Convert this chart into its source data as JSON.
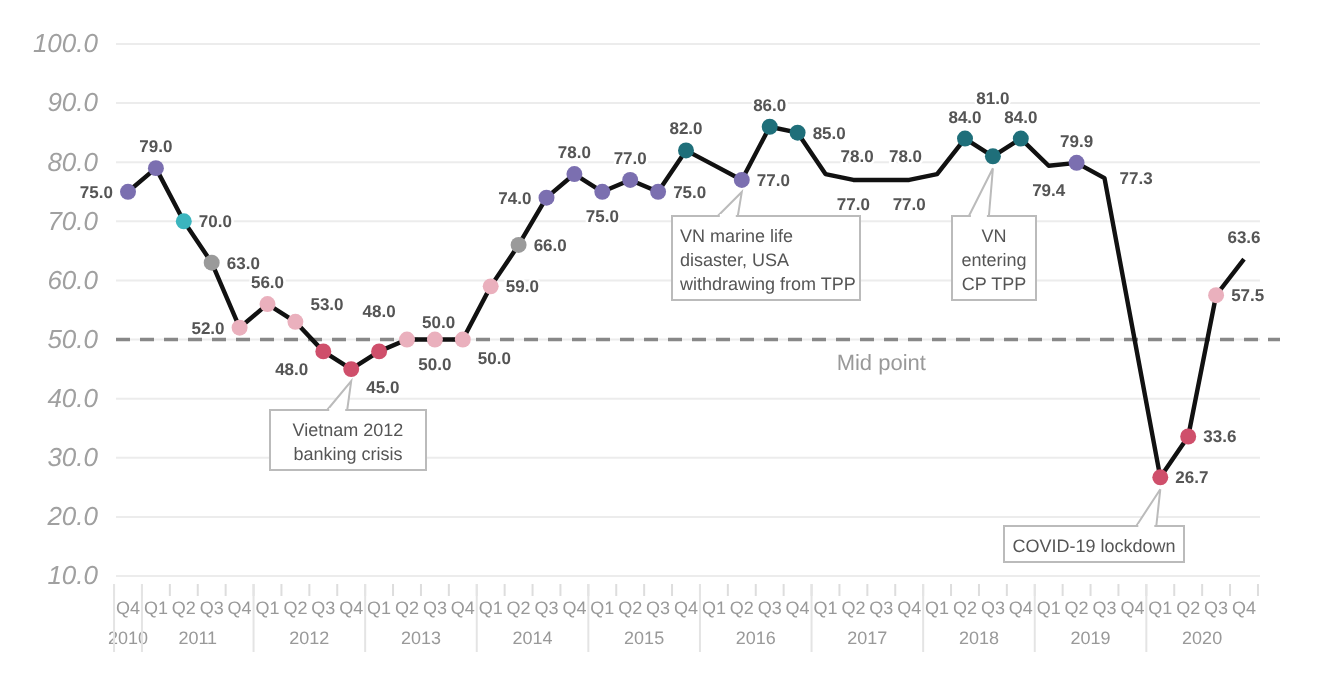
{
  "chart_data": {
    "type": "line",
    "categories": [
      "Q4",
      "Q1",
      "Q2",
      "Q3",
      "Q4",
      "Q1",
      "Q2",
      "Q3",
      "Q4",
      "Q1",
      "Q2",
      "Q3",
      "Q4",
      "Q1",
      "Q2",
      "Q3",
      "Q4",
      "Q1",
      "Q2",
      "Q3",
      "Q4",
      "Q1",
      "Q2",
      "Q3",
      "Q4",
      "Q1",
      "Q2",
      "Q3",
      "Q4",
      "Q1",
      "Q2",
      "Q3",
      "Q4",
      "Q1",
      "Q2",
      "Q3",
      "Q4",
      "Q1",
      "Q2",
      "Q3",
      "Q4"
    ],
    "series": [
      {
        "color": "#111111",
        "values": [
          75.0,
          79.0,
          70.0,
          63.0,
          52.0,
          56.0,
          53.0,
          48.0,
          45.0,
          48.0,
          50.0,
          50.0,
          50.0,
          59.0,
          66.0,
          74.0,
          78.0,
          75.0,
          77.0,
          75.0,
          82.0,
          79.5,
          77.0,
          86.0,
          85.0,
          78.0,
          77.0,
          77.0,
          77.0,
          78.0,
          84.0,
          81.0,
          84.0,
          79.4,
          79.9,
          77.3,
          52.0,
          26.7,
          33.6,
          57.5,
          63.6
        ],
        "colors": [
          "#7b6fb0",
          "#7b6fb0",
          "#3bb5be",
          "#9a9a9a",
          "#eab0bd",
          "#eab0bd",
          "#eab0bd",
          "#cf4f6b",
          "#cf4f6b",
          "#cf4f6b",
          "#eab0bd",
          "#eab0bd",
          "#eab0bd",
          "#eab0bd",
          "#9a9a9a",
          "#7b6fb0",
          "#7b6fb0",
          "#7b6fb0",
          "#7b6fb0",
          "#7b6fb0",
          "#1f6f7a",
          null,
          "#7b6fb0",
          "#1f6f7a",
          "#1f6f7a",
          null,
          null,
          null,
          null,
          null,
          "#1f6f7a",
          "#1f6f7a",
          "#1f6f7a",
          null,
          "#7b6fb0",
          null,
          null,
          "#cf4f6b",
          "#cf4f6b",
          "#eab0bd",
          null
        ],
        "value_labels": [
          "75.0",
          "79.0",
          "70.0",
          "63.0",
          "52.0",
          "56.0",
          "53.0",
          "48.0",
          "45.0",
          "48.0",
          "50.0",
          "50.0",
          "50.0",
          "59.0",
          "66.0",
          "74.0",
          "78.0",
          "75.0",
          "77.0",
          "75.0",
          "82.0",
          null,
          "77.0",
          "86.0",
          "85.0",
          "78.0",
          "77.0",
          null,
          "77.0",
          "78.0",
          "84.0",
          "81.0",
          "84.0",
          "79.4",
          "79.9",
          "77.3",
          null,
          "26.7",
          "33.6",
          "57.5",
          "63.6"
        ]
      }
    ],
    "ylim": [
      10,
      100
    ],
    "yticks": [
      {
        "value": 10,
        "label": "10.0"
      },
      {
        "value": 20,
        "label": "20.0"
      },
      {
        "value": 30,
        "label": "30.0"
      },
      {
        "value": 40,
        "label": "40.0"
      },
      {
        "value": 50,
        "label": "50.0"
      },
      {
        "value": 60,
        "label": "60.0"
      },
      {
        "value": 70,
        "label": "70.0"
      },
      {
        "value": 80,
        "label": "80.0"
      },
      {
        "value": 90,
        "label": "90.0"
      },
      {
        "value": 100,
        "label": "100.0"
      }
    ],
    "grid": "y",
    "marker": "circle",
    "line_style": "solid",
    "legend": false,
    "ref_lines": [
      {
        "axis": "y",
        "value": 50,
        "label": "Mid point",
        "color": "#888888",
        "line_style": "dashed"
      }
    ],
    "annotations": [
      "Vietnam 2012\nbanking crisis",
      "VN marine life\ndisaster, USA\nwithdrawing from TPP",
      "VN\nentering\nCP TPP",
      "COVID-19 lockdown",
      "2010",
      "2011",
      "2012",
      "2013",
      "2014",
      "2015",
      "2016",
      "2017",
      "2018",
      "2019",
      "2020"
    ]
  }
}
